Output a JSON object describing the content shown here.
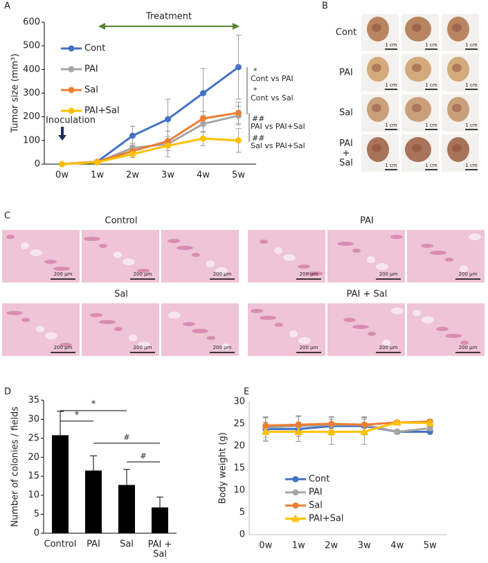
{
  "chart_data": [
    {
      "type": "line",
      "y_label": "Tumor size (mm³)",
      "categories": [
        "0w",
        "1w",
        "2w",
        "3w",
        "4w",
        "5w"
      ],
      "ylim": [
        0,
        600
      ],
      "yticks": [
        0,
        100,
        200,
        300,
        400,
        500,
        600
      ],
      "grid": false,
      "legend": "upper left",
      "series": [
        {
          "name": "Cont",
          "color": "#4472c4",
          "marker": "circle",
          "values": [
            0,
            10,
            120,
            190,
            300,
            410
          ],
          "errors": [
            0,
            5,
            40,
            85,
            105,
            135
          ]
        },
        {
          "name": "PAI",
          "color": "#a5a5a5",
          "marker": "circle",
          "values": [
            0,
            8,
            68,
            85,
            170,
            205
          ],
          "errors": [
            0,
            5,
            20,
            55,
            35,
            40
          ]
        },
        {
          "name": "Sal",
          "color": "#ed7d31",
          "marker": "circle",
          "values": [
            0,
            10,
            55,
            97,
            193,
            217
          ],
          "errors": [
            0,
            5,
            20,
            20,
            30,
            45
          ]
        },
        {
          "name": "PAI+Sal",
          "color": "#ffc000",
          "marker": "circle",
          "values": [
            0,
            8,
            42,
            78,
            108,
            100
          ],
          "errors": [
            0,
            5,
            15,
            20,
            30,
            50
          ]
        }
      ],
      "annotations": {
        "treatment": "Treatment",
        "inoculation": "Inoculation",
        "significance": [
          "*",
          "Cont vs PAI",
          "*",
          "Cont vs Sal",
          "##",
          "PAI vs PAI+Sal",
          "##",
          "Sal vs PAI+Sal"
        ]
      }
    },
    {
      "type": "bar",
      "y_label": "Number of colonies / fields",
      "categories": [
        "Control",
        "PAI",
        "Sal",
        "PAI +\nSal"
      ],
      "values": [
        25.8,
        16.5,
        12.7,
        6.8
      ],
      "errors": [
        6.3,
        3.9,
        4.1,
        2.7
      ],
      "color": "#000000",
      "ylim": [
        0,
        35
      ],
      "yticks": [
        0,
        5,
        10,
        15,
        20,
        25,
        30,
        35
      ],
      "grid": false,
      "annotations": [
        "*",
        "*",
        "#",
        "#"
      ]
    },
    {
      "type": "line",
      "y_label": "Body weight (g)",
      "categories": [
        "0w",
        "1w",
        "2w",
        "3w",
        "4w",
        "5w"
      ],
      "ylim": [
        0,
        30
      ],
      "yticks": [
        0,
        5,
        10,
        15,
        20,
        25,
        30
      ],
      "grid": false,
      "legend": "lower right",
      "series": [
        {
          "name": "Cont",
          "color": "#4472c4",
          "marker": "circle",
          "values": [
            23.8,
            23.8,
            24.5,
            24.5,
            23.2,
            23.2
          ],
          "errors": [
            2.5,
            2.8,
            2,
            2,
            0.4,
            0.4
          ]
        },
        {
          "name": "PAI",
          "color": "#a5a5a5",
          "marker": "circle",
          "values": [
            24.2,
            24.5,
            24.8,
            24.8,
            23.2,
            24.0
          ],
          "errors": [
            2.3,
            2.3,
            1.8,
            1.8,
            0.5,
            0.5
          ]
        },
        {
          "name": "Sal",
          "color": "#ed7d31",
          "marker": "circle",
          "values": [
            24.6,
            24.8,
            25.0,
            24.8,
            25.3,
            25.5
          ],
          "errors": [
            2,
            2,
            1.5,
            1.5,
            0.5,
            0.5
          ]
        },
        {
          "name": "PAI+Sal",
          "color": "#ffc000",
          "marker": "triangle",
          "values": [
            23.2,
            23.2,
            23.2,
            23.2,
            25.3,
            25.2
          ],
          "errors": [
            2.2,
            2.2,
            2.8,
            2.8,
            0.5,
            0.5
          ]
        }
      ]
    }
  ],
  "panel_labels": [
    "A",
    "B",
    "C",
    "D",
    "E"
  ],
  "tumor_photos": {
    "rows": [
      "Cont",
      "PAI",
      "Sal",
      "PAI\n+\nSal"
    ],
    "scale_label": "1 cm"
  },
  "histology": {
    "groups": [
      "Control",
      "PAI",
      "Sal",
      "PAI + Sal"
    ],
    "scale_label": "200 µm"
  }
}
